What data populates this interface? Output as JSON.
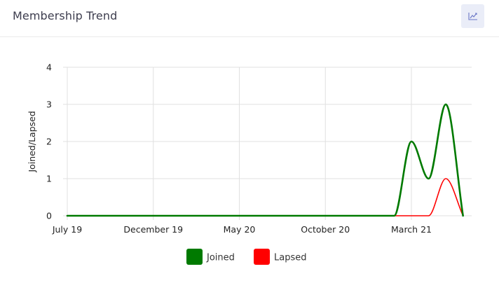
{
  "header": {
    "title": "Membership Trend",
    "chart_button_icon": "line-chart-icon"
  },
  "chart_data": {
    "type": "line",
    "title": "",
    "xlabel": "",
    "ylabel": "Joined/Lapsed",
    "ylim": [
      0,
      4
    ],
    "yticks": [
      0,
      1,
      2,
      3,
      4
    ],
    "x_tick_labels": [
      "July 19",
      "December 19",
      "May 20",
      "October 20",
      "March 21"
    ],
    "x": [
      "Jul 19",
      "Aug 19",
      "Sep 19",
      "Oct 19",
      "Nov 19",
      "Dec 19",
      "Jan 20",
      "Feb 20",
      "Mar 20",
      "Apr 20",
      "May 20",
      "Jun 20",
      "Jul 20",
      "Aug 20",
      "Sep 20",
      "Oct 20",
      "Nov 20",
      "Dec 20",
      "Jan 21",
      "Feb 21",
      "Mar 21",
      "Apr 21",
      "May 21",
      "Jun 21"
    ],
    "series": [
      {
        "name": "Joined",
        "color": "#007a00",
        "values": [
          0,
          0,
          0,
          0,
          0,
          0,
          0,
          0,
          0,
          0,
          0,
          0,
          0,
          0,
          0,
          0,
          0,
          0,
          0,
          0,
          2,
          1,
          3,
          0
        ]
      },
      {
        "name": "Lapsed",
        "color": "#ff0000",
        "values": [
          0,
          0,
          0,
          0,
          0,
          0,
          0,
          0,
          0,
          0,
          0,
          0,
          0,
          0,
          0,
          0,
          0,
          0,
          0,
          0,
          0,
          0,
          1,
          0
        ]
      }
    ],
    "grid": true,
    "legend_position": "bottom"
  }
}
